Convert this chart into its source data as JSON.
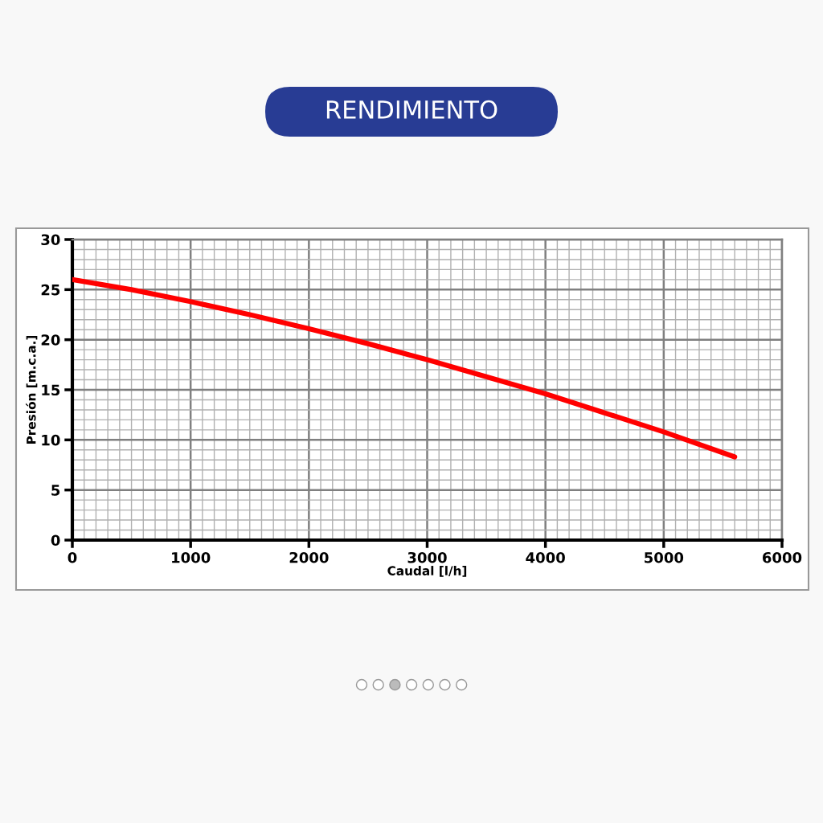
{
  "chart_data": {
    "type": "line",
    "title": "RENDIMIENTO",
    "xlabel": "Caudal [l/h]",
    "ylabel": "Presión [m.c.a.]",
    "x": [
      0,
      500,
      1000,
      1500,
      2000,
      2500,
      3000,
      3500,
      4000,
      4500,
      5000,
      5600
    ],
    "series": [
      {
        "color": "#ff0000",
        "values": [
          26.0,
          25.0,
          23.8,
          22.5,
          21.1,
          19.6,
          18.0,
          16.3,
          14.6,
          12.7,
          10.8,
          8.3
        ]
      }
    ],
    "xlim": [
      0,
      6000
    ],
    "xticks": [
      0,
      1000,
      2000,
      3000,
      4000,
      5000,
      6000
    ],
    "ylim": [
      0,
      30
    ],
    "yticks": [
      0,
      5,
      10,
      15,
      20,
      25,
      30
    ],
    "grid": true,
    "marker": "none",
    "line_style": "solid",
    "legend": false
  }
}
